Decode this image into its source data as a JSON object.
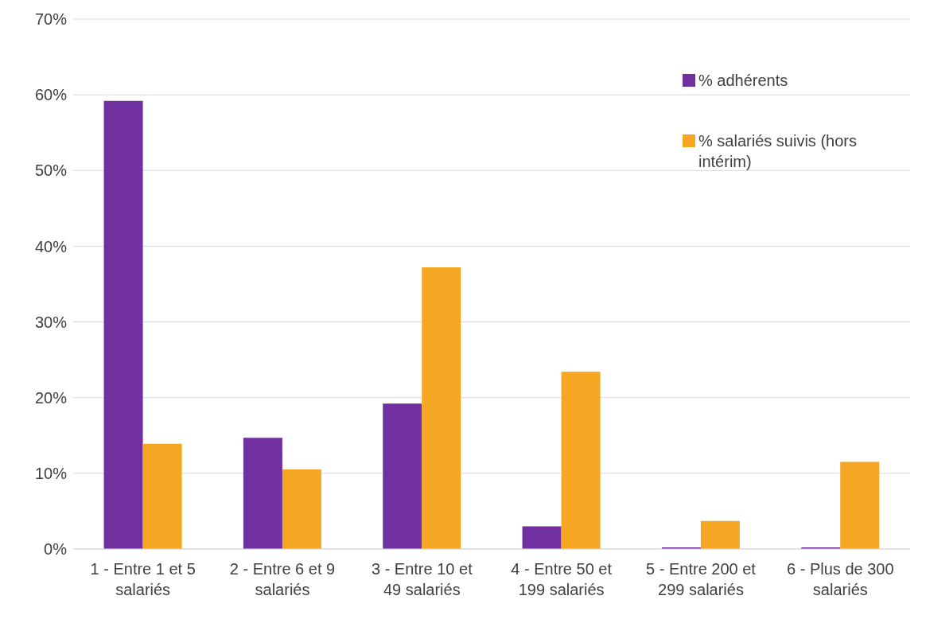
{
  "chart_data": {
    "type": "bar",
    "categories": [
      "1 - Entre 1 et 5 salariés",
      "2 - Entre 6 et 9 salariés",
      "3 - Entre 10 et 49 salariés",
      "4 - Entre 50 et 199 salariés",
      "5 - Entre 200 et 299 salariés",
      "6 - Plus de 300 salariés"
    ],
    "series": [
      {
        "name": "% adhérents",
        "color": "#7030a0",
        "values": [
          59.2,
          14.7,
          19.2,
          3.0,
          0.2,
          0.2
        ]
      },
      {
        "name": "% salariés suivis (hors intérim)",
        "color": "#f5a623",
        "values": [
          13.9,
          10.5,
          37.2,
          23.4,
          3.7,
          11.5
        ]
      }
    ],
    "ylim": [
      0,
      70
    ],
    "yticks": [
      {
        "value": 0,
        "label": "0%"
      },
      {
        "value": 10,
        "label": "10%"
      },
      {
        "value": 20,
        "label": "20%"
      },
      {
        "value": 30,
        "label": "30%"
      },
      {
        "value": 40,
        "label": "40%"
      },
      {
        "value": 50,
        "label": "50%"
      },
      {
        "value": 60,
        "label": "60%"
      },
      {
        "value": 70,
        "label": "70%"
      }
    ],
    "grid": "y",
    "legend": "top right"
  }
}
